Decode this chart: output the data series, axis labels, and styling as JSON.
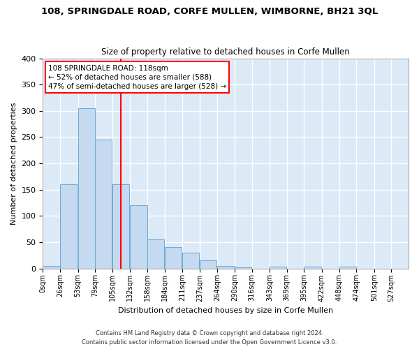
{
  "title": "108, SPRINGDALE ROAD, CORFE MULLEN, WIMBORNE, BH21 3QL",
  "subtitle": "Size of property relative to detached houses in Corfe Mullen",
  "xlabel": "Distribution of detached houses by size in Corfe Mullen",
  "ylabel": "Number of detached properties",
  "bar_color": "#c5d9f0",
  "bar_edge_color": "#6aaad4",
  "background_color": "#dce9f7",
  "grid_color": "#ffffff",
  "vline_x": 118,
  "vline_color": "red",
  "annotation_text": "108 SPRINGDALE ROAD: 118sqm\n← 52% of detached houses are smaller (588)\n47% of semi-detached houses are larger (528) →",
  "bin_edges": [
    0,
    26,
    53,
    79,
    105,
    132,
    158,
    184,
    211,
    237,
    264,
    290,
    316,
    343,
    369,
    395,
    422,
    448,
    474,
    501,
    527
  ],
  "bin_counts": [
    5,
    160,
    305,
    245,
    160,
    120,
    55,
    40,
    30,
    15,
    5,
    2,
    0,
    4,
    0,
    4,
    0,
    4,
    0,
    0
  ],
  "ylim": [
    0,
    400
  ],
  "yticks": [
    0,
    50,
    100,
    150,
    200,
    250,
    300,
    350,
    400
  ],
  "footer1": "Contains HM Land Registry data © Crown copyright and database right 2024.",
  "footer2": "Contains public sector information licensed under the Open Government Licence v3.0."
}
